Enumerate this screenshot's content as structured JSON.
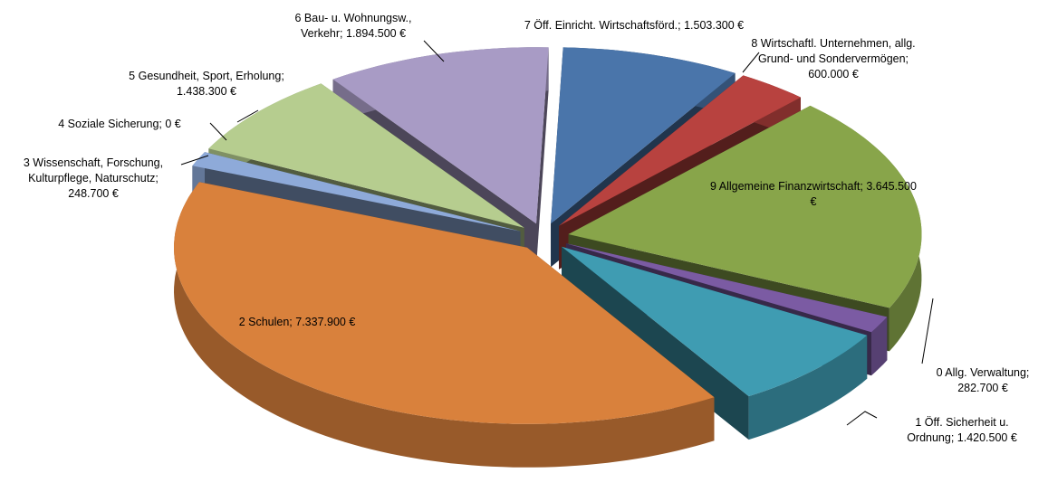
{
  "chart_data": {
    "type": "pie3d",
    "values": [
      282700,
      1420500,
      7337900,
      248700,
      0,
      1438300,
      1894500,
      1503300,
      600000,
      3645500
    ],
    "value_labels": [
      "0 Allg. Verwaltung; 282.700 €",
      "1 Öff. Sicherheit u. Ordnung; 1.420.500 €",
      "2 Schulen; 7.337.900 €",
      "3 Wissenschaft, Forschung, Kulturpflege, Naturschutz; 248.700 €",
      "4 Soziale Sicherung; 0 €",
      "5 Gesundheit, Sport, Erholung; 1.438.300 €",
      "6 Bau- u. Wohnungsw., Verkehr; 1.894.500 €",
      "7 Öff. Einricht. Wirtschaftsförd.; 1.503.300 €",
      "8 Wirtschaftl. Unternehmen, allg. Grund- und Sondervermögen; 600.000 €",
      "9 Allgemeine Finanzwirtschaft; 3.645.500 €"
    ],
    "colors": [
      "#7b5ba3",
      "#3f9cb2",
      "#d9813c",
      "#8eaad9",
      "#c0504d",
      "#b6cd8f",
      "#a89bc5",
      "#4a75aa",
      "#b8423f",
      "#88a54a"
    ]
  }
}
